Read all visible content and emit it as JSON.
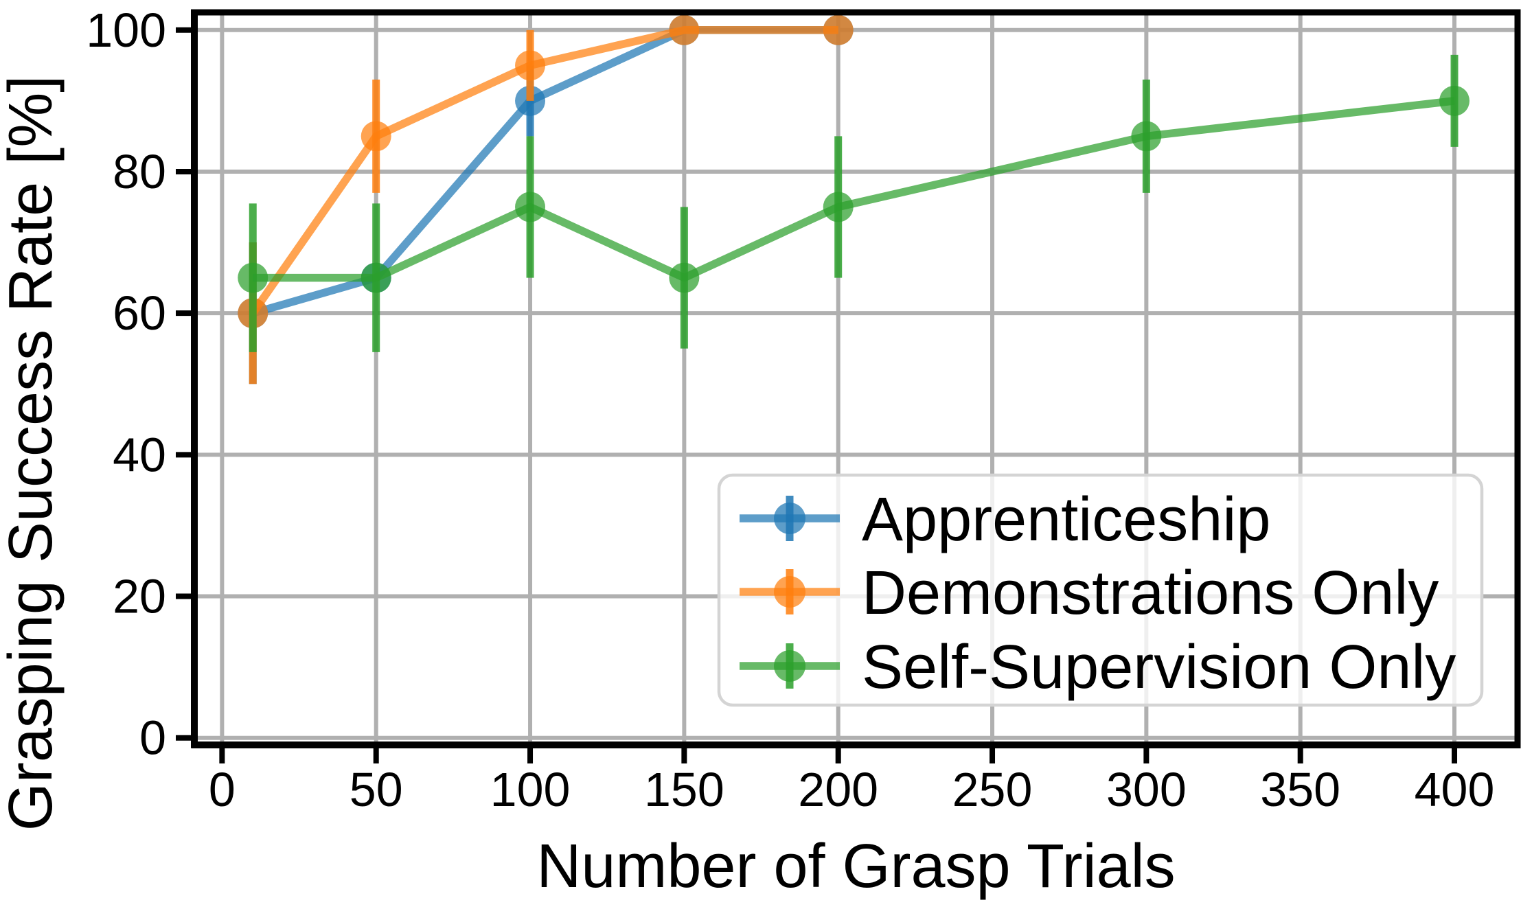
{
  "chart_data": {
    "type": "line",
    "title": "",
    "xlabel": "Number of Grasp Trials",
    "ylabel": "Grasping Success Rate [%]",
    "xticks": [
      0,
      50,
      100,
      150,
      200,
      250,
      300,
      350,
      400
    ],
    "yticks": [
      0,
      20,
      40,
      60,
      80,
      100
    ],
    "xlim": [
      -9,
      420.5
    ],
    "ylim": [
      -1,
      102.5
    ],
    "grid": true,
    "grid_color": "#b0b0b0",
    "background": "#ffffff",
    "spine_color": "#000000",
    "legend_position": "lower right",
    "series": [
      {
        "name": "Apprenticeship",
        "color": "#1f77b4",
        "x": [
          10,
          50,
          100,
          150,
          200
        ],
        "y": [
          60,
          65,
          90,
          100,
          100
        ],
        "yerr": [
          10,
          0,
          5,
          0,
          0
        ]
      },
      {
        "name": "Demonstrations Only",
        "color": "#ff7f0e",
        "x": [
          10,
          50,
          100,
          150,
          200
        ],
        "y": [
          60,
          85,
          95,
          100,
          100
        ],
        "yerr": [
          10,
          8,
          5,
          0,
          0
        ]
      },
      {
        "name": "Self-Supervision Only",
        "color": "#2ca02c",
        "x": [
          10,
          50,
          100,
          150,
          200,
          300,
          400
        ],
        "y": [
          65,
          65,
          75,
          65,
          75,
          85,
          90
        ],
        "yerr": [
          10.5,
          10.5,
          10,
          10,
          10,
          8,
          6.5
        ]
      }
    ]
  }
}
